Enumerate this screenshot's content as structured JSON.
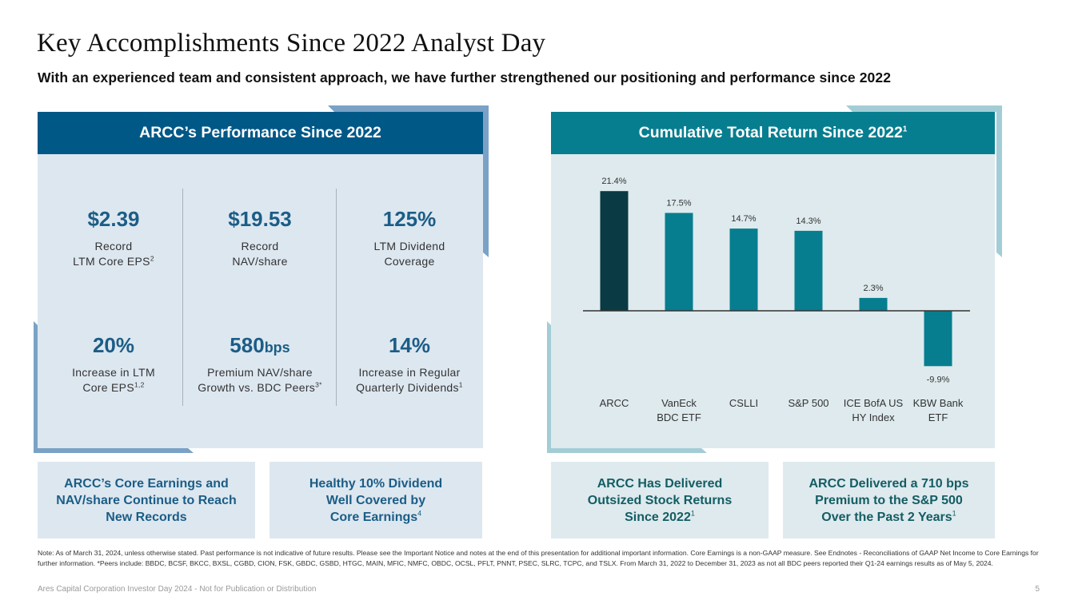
{
  "header": {
    "title": "Key Accomplishments Since 2022 Analyst Day",
    "subtitle": "With an experienced team and consistent approach, we have further strengthened our positioning and performance since 2022"
  },
  "colors": {
    "left_header": "#005887",
    "left_accent": "#7aa2c6",
    "left_bg": "#dde7f0",
    "right_header": "#077e8f",
    "right_accent": "#a3cdd6",
    "right_bg": "#deeaee",
    "arcc_bar": "#0a3a43",
    "peer_bar": "#077e8f",
    "metric_value": "#1b5d86"
  },
  "left_panel": {
    "title": "ARCC’s Performance Since 2022",
    "metrics": [
      {
        "value": "$2.39",
        "unit": "",
        "line1": "Record",
        "line2": "LTM Core EPS",
        "sup": "2"
      },
      {
        "value": "$19.53",
        "unit": "",
        "line1": "Record",
        "line2": "NAV/share",
        "sup": ""
      },
      {
        "value": "125%",
        "unit": "",
        "line1": "LTM Dividend",
        "line2": "Coverage",
        "sup": ""
      },
      {
        "value": "20%",
        "unit": "",
        "line1": "Increase in LTM",
        "line2": "Core EPS",
        "sup": "1,2"
      },
      {
        "value": "580",
        "unit": "bps",
        "line1": "Premium NAV/share",
        "line2": "Growth vs. BDC Peers",
        "sup": "3*"
      },
      {
        "value": "14%",
        "unit": "",
        "line1": "Increase in Regular",
        "line2": "Quarterly Dividends",
        "sup": "1"
      }
    ]
  },
  "right_panel": {
    "title": "Cumulative Total Return Since 2022",
    "title_sup": "1"
  },
  "chart_data": {
    "type": "bar",
    "title": "Cumulative Total Return Since 2022",
    "categories": [
      "ARCC",
      "VanEck BDC ETF",
      "CSLLI",
      "S&P 500",
      "ICE BofA US HY Index",
      "KBW Bank ETF"
    ],
    "category_lines": [
      [
        "ARCC"
      ],
      [
        "VanEck",
        "BDC ETF"
      ],
      [
        "CSLLI"
      ],
      [
        "S&P 500"
      ],
      [
        "ICE BofA US",
        "HY Index"
      ],
      [
        "KBW Bank",
        "ETF"
      ]
    ],
    "values": [
      21.4,
      17.5,
      14.7,
      14.3,
      2.3,
      -9.9
    ],
    "data_labels": [
      "21.4%",
      "17.5%",
      "14.7%",
      "14.3%",
      "2.3%",
      "-9.9%"
    ],
    "highlight_index": 0,
    "xlabel": "",
    "ylabel": "",
    "ylim": [
      -11,
      22
    ],
    "grid": false,
    "legend": "none"
  },
  "callouts": [
    {
      "lines": [
        "ARCC’s Core Earnings and",
        "NAV/share Continue to Reach",
        "New Records"
      ],
      "sup": ""
    },
    {
      "lines": [
        "Healthy 10% Dividend",
        "Well Covered by",
        "Core Earnings"
      ],
      "sup": "4"
    },
    {
      "lines": [
        "ARCC Has Delivered",
        "Outsized Stock Returns",
        "Since 2022"
      ],
      "sup": "1"
    },
    {
      "lines": [
        "ARCC Delivered a 710 bps",
        "Premium to the S&P 500",
        "Over the Past 2 Years"
      ],
      "sup": "1"
    }
  ],
  "footnote": "Note: As of March 31, 2024, unless otherwise stated. Past performance is not indicative of future results. Please see the Important Notice and notes at the end of this presentation for additional important information. Core Earnings is a non-GAAP measure. See Endnotes  - Reconciliations of GAAP Net Income to Core Earnings for further information. *Peers include: BBDC, BCSF, BKCC, BXSL, CGBD, CION, FSK, GBDC, GSBD, HTGC, MAIN, MFIC, NMFC, OBDC, OCSL, PFLT, PNNT, PSEC, SLRC, TCPC, and TSLX.  From March 31, 2022 to December 31, 2023 as not all BDC peers reported their Q1-24 earnings results as of May 5, 2024.",
  "footer": {
    "text": "Ares Capital Corporation Investor Day 2024 - Not for Publication or Distribution",
    "page_number": "5"
  }
}
